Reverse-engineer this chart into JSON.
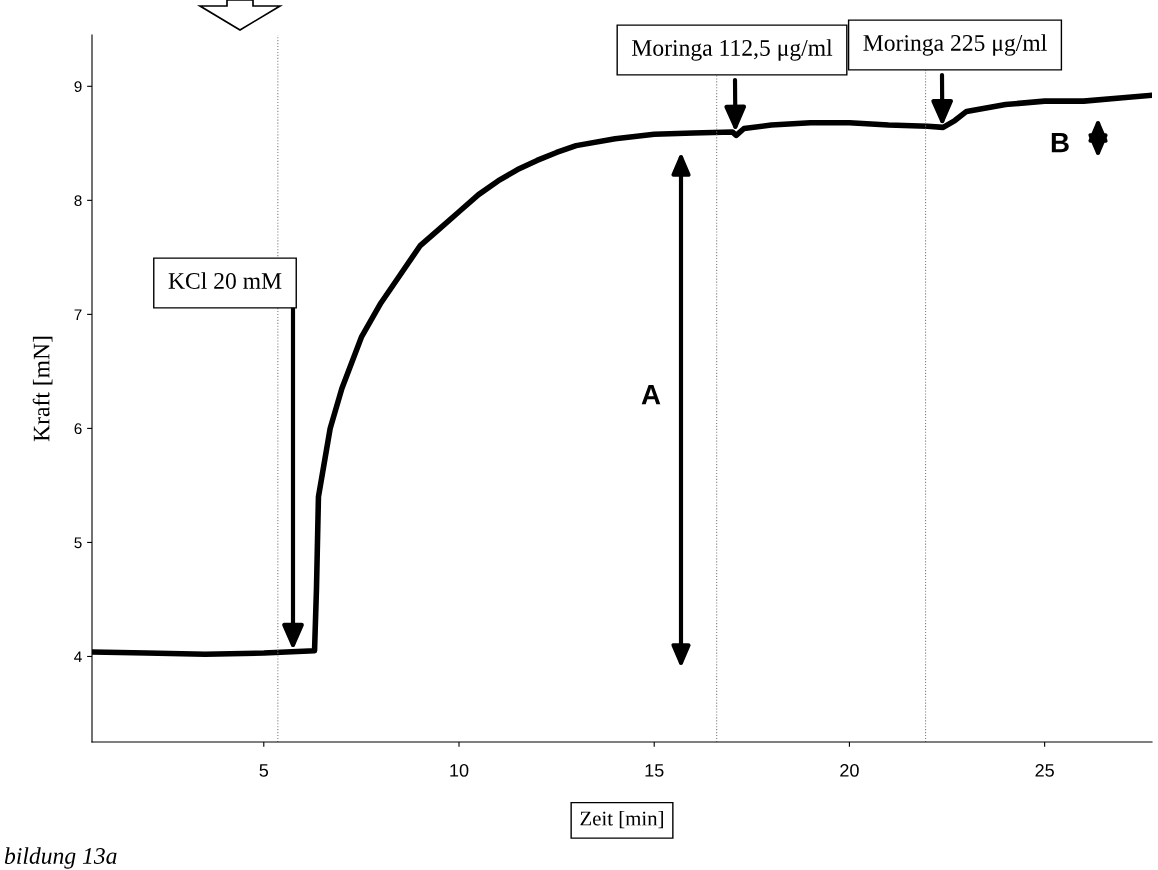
{
  "chart_data": {
    "type": "line",
    "xlabel": "Zeit [min]",
    "ylabel": "Kraft [mN]",
    "x": [
      0.6,
      2,
      3.5,
      5,
      6.3,
      6.35,
      6.4,
      6.5,
      6.7,
      7.0,
      7.5,
      8.0,
      8.5,
      9,
      9.5,
      10,
      10.5,
      11,
      11.5,
      12,
      12.5,
      13,
      14,
      15,
      16,
      17,
      17.1,
      17.3,
      18,
      19,
      20,
      21,
      22,
      22.4,
      22.7,
      23,
      24,
      25,
      26,
      27,
      27.7
    ],
    "series": [
      {
        "color": "#000000",
        "values": [
          4.04,
          4.03,
          4.02,
          4.03,
          4.05,
          4.6,
          5.4,
          5.6,
          6.0,
          6.35,
          6.8,
          7.1,
          7.35,
          7.6,
          7.75,
          7.9,
          8.05,
          8.17,
          8.27,
          8.35,
          8.42,
          8.48,
          8.54,
          8.58,
          8.59,
          8.6,
          8.57,
          8.63,
          8.66,
          8.68,
          8.68,
          8.66,
          8.65,
          8.64,
          8.7,
          8.78,
          8.84,
          8.87,
          8.87,
          8.9,
          8.92
        ]
      }
    ],
    "xlim": [
      0.6,
      27.75
    ],
    "ylim": [
      3.25,
      9.45
    ],
    "xticks": [
      5,
      10,
      15,
      20,
      25
    ],
    "yticks": [
      4,
      5,
      6,
      7,
      8,
      9
    ],
    "grid": false,
    "legend": false,
    "marker": "none",
    "line_style": "solid",
    "ref_lines": [
      {
        "axis": "x",
        "value": 5.36,
        "color": "#808080",
        "line_style": "dotted"
      },
      {
        "axis": "x",
        "value": 16.6,
        "color": "#808080",
        "line_style": "dotted"
      },
      {
        "axis": "x",
        "value": 21.95,
        "color": "#808080",
        "line_style": "dotted"
      }
    ],
    "annotations": [
      "KCl 20 mM",
      {
        "text": "Moringa 112,5 μg/ml",
        "x": 17.08,
        "y": 8.6
      },
      {
        "text": "Moringa 225 μg/ml",
        "x": 22.38,
        "y": 8.65
      },
      "A",
      "B",
      "bildung 13a"
    ]
  }
}
